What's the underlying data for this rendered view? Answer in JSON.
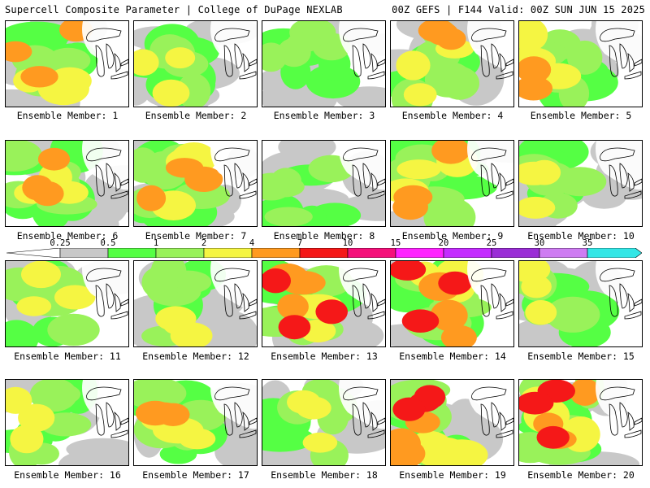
{
  "header": {
    "left": "Supercell Composite Parameter | College of DuPage NEXLAB",
    "right": "00Z GEFS | F144 Valid: 00Z SUN JUN 15 2025"
  },
  "colorbar": {
    "ticks": [
      "0.25",
      "0.5",
      "1",
      "2",
      "4",
      "7",
      "10",
      "15",
      "20",
      "25",
      "30",
      "35"
    ],
    "colors": [
      "#c8c8c8",
      "#55ff44",
      "#99f25a",
      "#f5f542",
      "#ff9a20",
      "#f51818",
      "#f5107a",
      "#ff22ff",
      "#c42cff",
      "#9a2ed6",
      "#ce7cf2",
      "#33e6e6"
    ]
  },
  "members": [
    {
      "label": "Ensemble Member: 1",
      "level": 3
    },
    {
      "label": "Ensemble Member: 2",
      "level": 2
    },
    {
      "label": "Ensemble Member: 3",
      "level": 1
    },
    {
      "label": "Ensemble Member: 4",
      "level": 3
    },
    {
      "label": "Ensemble Member: 5",
      "level": 3
    },
    {
      "label": "Ensemble Member: 6",
      "level": 3
    },
    {
      "label": "Ensemble Member: 7",
      "level": 3
    },
    {
      "label": "Ensemble Member: 8",
      "level": 1
    },
    {
      "label": "Ensemble Member: 9",
      "level": 3
    },
    {
      "label": "Ensemble Member: 10",
      "level": 2
    },
    {
      "label": "Ensemble Member: 11",
      "level": 2
    },
    {
      "label": "Ensemble Member: 12",
      "level": 2
    },
    {
      "label": "Ensemble Member: 13",
      "level": 4
    },
    {
      "label": "Ensemble Member: 14",
      "level": 4
    },
    {
      "label": "Ensemble Member: 15",
      "level": 2
    },
    {
      "label": "Ensemble Member: 16",
      "level": 2
    },
    {
      "label": "Ensemble Member: 17",
      "level": 3
    },
    {
      "label": "Ensemble Member: 18",
      "level": 2
    },
    {
      "label": "Ensemble Member: 19",
      "level": 4
    },
    {
      "label": "Ensemble Member: 20",
      "level": 4
    }
  ]
}
